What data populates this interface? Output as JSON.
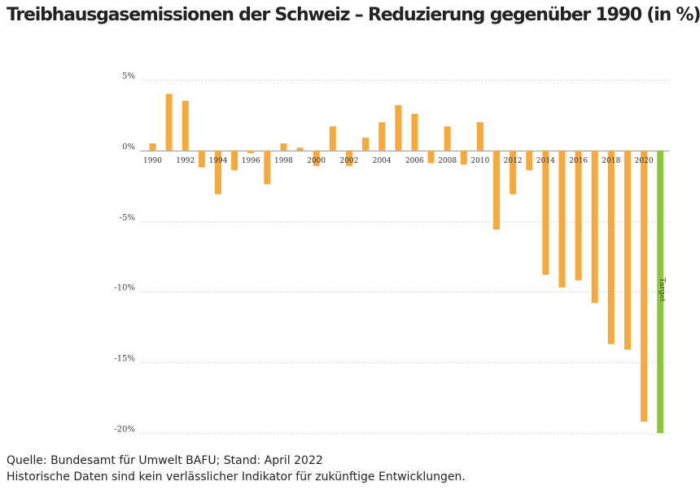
{
  "title": "Treibhausgasemissionen der Schweiz – Reduzierung gegenüber 1990 (in %)",
  "footer": {
    "source": "Quelle: Bundesamt für Umwelt BAFU; Stand: April 2022",
    "disclaimer": "Historische Daten sind kein verlässlicher Indikator für zukünftige Entwicklungen."
  },
  "colors": {
    "bar": "#f7a93b",
    "target": "#8cc63f",
    "grid": "#d9d9d9"
  },
  "chart_data": {
    "type": "bar",
    "title": "Treibhausgasemissionen der Schweiz – Reduzierung gegenüber 1990 (in %)",
    "ylim": [
      -20,
      5
    ],
    "yticks": [
      {
        "value": 5,
        "label": "5%"
      },
      {
        "value": 0,
        "label": "0%"
      },
      {
        "value": -5,
        "label": "-5%"
      },
      {
        "value": -10,
        "label": "-10%"
      },
      {
        "value": -15,
        "label": "-15%"
      },
      {
        "value": -20,
        "label": "-20%"
      }
    ],
    "xticks": [
      "1990",
      "1992",
      "1994",
      "1996",
      "1998",
      "2000",
      "2002",
      "2004",
      "2006",
      "2008",
      "2010",
      "2012",
      "2014",
      "2016",
      "2018",
      "2020"
    ],
    "categories": [
      "1990",
      "1991",
      "1992",
      "1993",
      "1994",
      "1995",
      "1996",
      "1997",
      "1998",
      "1999",
      "2000",
      "2001",
      "2002",
      "2003",
      "2004",
      "2005",
      "2006",
      "2007",
      "2008",
      "2009",
      "2010",
      "2011",
      "2012",
      "2013",
      "2014",
      "2015",
      "2016",
      "2017",
      "2018",
      "2019",
      "2020"
    ],
    "values": [
      0.5,
      4.0,
      3.5,
      -1.2,
      -3.1,
      -1.4,
      -0.2,
      -2.4,
      0.5,
      0.2,
      -1.1,
      1.7,
      -1.1,
      0.9,
      2.0,
      3.2,
      2.6,
      -0.9,
      1.7,
      -1.0,
      2.0,
      -5.6,
      -3.1,
      -1.4,
      -8.8,
      -9.7,
      -9.2,
      -10.8,
      -13.7,
      -14.1,
      -19.2
    ],
    "target": {
      "label": "Target",
      "value": -20
    },
    "grid": true
  }
}
